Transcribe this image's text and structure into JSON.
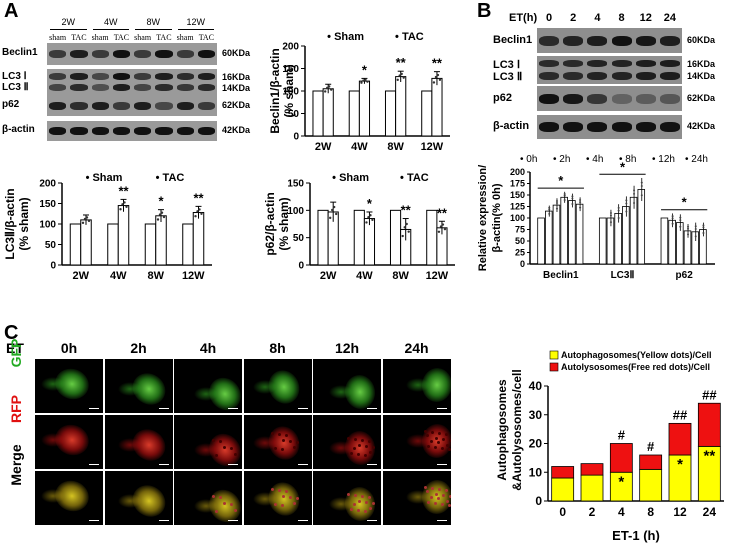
{
  "panel_labels": {
    "a": "A",
    "b": "B",
    "c": "C"
  },
  "blot_a": {
    "groups": [
      "2W",
      "4W",
      "8W",
      "12W"
    ],
    "lanes": [
      "sham",
      "TAC",
      "sham",
      "TAC",
      "sham",
      "TAC",
      "sham",
      "TAC"
    ],
    "rows": [
      {
        "protein": "Beclin1",
        "kda": "60KDa"
      },
      {
        "protein": "LC3 Ⅰ",
        "kda": "16KDa"
      },
      {
        "protein": "LC3 Ⅱ",
        "kda": "14KDa"
      },
      {
        "protein": "p62",
        "kda": "62KDa"
      },
      {
        "protein": "β-actin",
        "kda": "42KDa"
      }
    ]
  },
  "blot_b": {
    "header": "ET(h)",
    "times": [
      "0",
      "2",
      "4",
      "8",
      "12",
      "24"
    ],
    "rows": [
      {
        "protein": "Beclin1",
        "kda": "60KDa"
      },
      {
        "protein": "LC3 Ⅰ",
        "kda": "16KDa"
      },
      {
        "protein": "LC3 Ⅱ",
        "kda": "14KDa"
      },
      {
        "protein": "p62",
        "kda": "62KDa"
      },
      {
        "protein": "β-actin",
        "kda": "42KDa"
      }
    ]
  },
  "panel_c": {
    "row_header": "ET",
    "times": [
      "0h",
      "2h",
      "4h",
      "8h",
      "12h",
      "24h"
    ],
    "channels": [
      "GFP",
      "RFP",
      "Merge"
    ],
    "channel_colors": {
      "GFP": "#22aa22",
      "RFP": "#e01010",
      "Merge": "#000000"
    }
  },
  "chart_data": [
    {
      "id": "beclin",
      "type": "bar",
      "ylabel": "Beclin1/β-actin\n(% sham)",
      "categories": [
        "2W",
        "4W",
        "8W",
        "12W"
      ],
      "legend": [
        "Sham",
        "TAC"
      ],
      "series": [
        {
          "name": "Sham",
          "values": [
            100,
            100,
            100,
            100
          ]
        },
        {
          "name": "TAC",
          "values": [
            105,
            122,
            132,
            128
          ]
        }
      ],
      "errors": [
        [
          0,
          0,
          0,
          0
        ],
        [
          10,
          6,
          12,
          15
        ]
      ],
      "annotations": [
        "",
        "*",
        "**",
        "**"
      ],
      "yticks": [
        0,
        50,
        100,
        150,
        200
      ],
      "ylim": [
        0,
        200
      ]
    },
    {
      "id": "lc3",
      "type": "bar",
      "ylabel": "LC3Ⅱ/β-actin\n(% sham)",
      "categories": [
        "2W",
        "4W",
        "8W",
        "12W"
      ],
      "legend": [
        "Sham",
        "TAC"
      ],
      "series": [
        {
          "name": "Sham",
          "values": [
            100,
            100,
            100,
            100
          ]
        },
        {
          "name": "TAC",
          "values": [
            110,
            145,
            120,
            128
          ]
        }
      ],
      "errors": [
        [
          0,
          0,
          0,
          0
        ],
        [
          12,
          15,
          15,
          15
        ]
      ],
      "annotations": [
        "",
        "**",
        "*",
        "**"
      ],
      "yticks": [
        0,
        50,
        100,
        150,
        200
      ],
      "ylim": [
        0,
        200
      ]
    },
    {
      "id": "p62",
      "type": "bar",
      "ylabel": "p62/β-actin\n(% sham)",
      "categories": [
        "2W",
        "4W",
        "8W",
        "12W"
      ],
      "legend": [
        "Sham",
        "TAC"
      ],
      "series": [
        {
          "name": "Sham",
          "values": [
            100,
            100,
            100,
            100
          ]
        },
        {
          "name": "TAC",
          "values": [
            97,
            85,
            65,
            68
          ]
        }
      ],
      "errors": [
        [
          0,
          0,
          0,
          0
        ],
        [
          18,
          12,
          20,
          12
        ]
      ],
      "annotations": [
        "",
        "*",
        "**",
        "**"
      ],
      "yticks": [
        0,
        50,
        100,
        150
      ],
      "ylim": [
        0,
        150
      ]
    },
    {
      "id": "relexp",
      "type": "bar",
      "ylabel": "Relative expression/\nβ-actin(% 0h)",
      "categories": [
        "Beclin1",
        "LC3Ⅱ",
        "p62"
      ],
      "legend": [
        "0h",
        "2h",
        "4h",
        "8h",
        "12h",
        "24h"
      ],
      "series": [
        {
          "name": "0h",
          "values": [
            100,
            100,
            100
          ]
        },
        {
          "name": "2h",
          "values": [
            115,
            100,
            95
          ]
        },
        {
          "name": "4h",
          "values": [
            128,
            110,
            90
          ]
        },
        {
          "name": "8h",
          "values": [
            145,
            125,
            72
          ]
        },
        {
          "name": "12h",
          "values": [
            138,
            145,
            70
          ]
        },
        {
          "name": "24h",
          "values": [
            130,
            162,
            75
          ]
        }
      ],
      "errors": [
        [
          0,
          0,
          0
        ],
        [
          12,
          18,
          15
        ],
        [
          15,
          20,
          18
        ],
        [
          12,
          22,
          15
        ],
        [
          15,
          25,
          20
        ],
        [
          15,
          25,
          15
        ]
      ],
      "brackets": [
        {
          "cat": "Beclin1",
          "text": "*"
        },
        {
          "cat": "LC3Ⅱ",
          "text": "*"
        },
        {
          "cat": "p62",
          "text": "*"
        }
      ],
      "yticks": [
        0,
        25,
        50,
        75,
        100,
        125,
        150,
        175,
        200
      ],
      "ylim": [
        0,
        200
      ]
    },
    {
      "id": "dots",
      "type": "bar",
      "stacked": true,
      "xlabel": "ET-1 (h)",
      "ylabel": "Autophagosomes\n&Autolysosomes/cell",
      "categories": [
        "0",
        "2",
        "4",
        "8",
        "12",
        "24"
      ],
      "series": [
        {
          "name": "Autophagosomes(Yellow dots)/Cell",
          "color": "#ffff00",
          "values": [
            8,
            9,
            10,
            11,
            16,
            19
          ]
        },
        {
          "name": "Autolysosomes(Free red dots)/Cell",
          "color": "#ee1111",
          "values": [
            4,
            4,
            10,
            5,
            11,
            15
          ]
        }
      ],
      "annotations_bottom": [
        "",
        "",
        "*",
        "",
        "*",
        "**"
      ],
      "annotations_top": [
        "",
        "",
        "#",
        "#",
        "##",
        "##"
      ],
      "yticks": [
        0,
        10,
        20,
        30,
        40
      ],
      "ylim": [
        0,
        40
      ]
    }
  ]
}
